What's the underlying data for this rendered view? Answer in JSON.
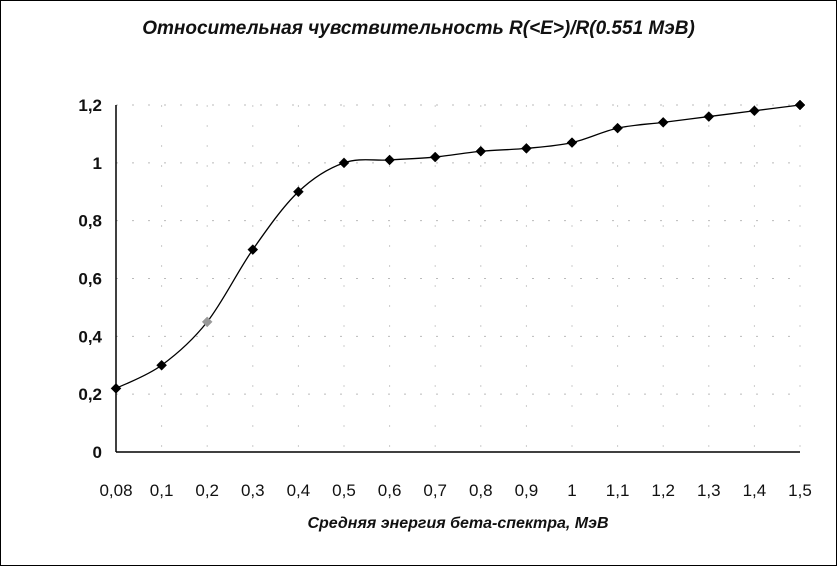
{
  "chart_data": {
    "type": "line",
    "title": "Относительная чувствительность R(<E>)/R(0.551 МэВ)",
    "xlabel": "Средняя энергия бета-спектра, МэВ",
    "ylabel": "",
    "categories": [
      "0,08",
      "0,1",
      "0,2",
      "0,3",
      "0,4",
      "0,5",
      "0,6",
      "0,7",
      "0,8",
      "0,9",
      "1",
      "1,1",
      "1,2",
      "1,3",
      "1,4",
      "1,5"
    ],
    "y_ticks": [
      "0",
      "0,2",
      "0,4",
      "0,6",
      "0,8",
      "1",
      "1,2"
    ],
    "ylim": [
      0,
      1.2
    ],
    "series": [
      {
        "values": [
          0.22,
          0.3,
          0.45,
          0.7,
          0.9,
          1.0,
          1.01,
          1.02,
          1.04,
          1.05,
          1.07,
          1.12,
          1.14,
          1.16,
          1.18,
          1.2
        ],
        "marker": "diamond",
        "color": "#000000",
        "highlight_index": 2,
        "highlight_color": "#9a9a9a"
      }
    ],
    "grid": "dotted-sparse",
    "legend": "none"
  }
}
